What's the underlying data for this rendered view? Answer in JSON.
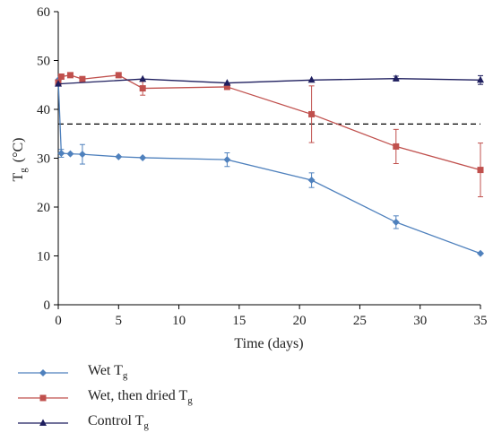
{
  "chart_data": {
    "type": "line",
    "xlabel": "Time (days)",
    "ylabel": {
      "main": "T",
      "sub": "g",
      "unit": "(°C)"
    },
    "xlim": [
      0,
      35
    ],
    "ylim": [
      0,
      60
    ],
    "xticks": [
      0,
      5,
      10,
      15,
      20,
      25,
      30,
      35
    ],
    "yticks": [
      0,
      10,
      20,
      30,
      40,
      50,
      60
    ],
    "grid": false,
    "legend_position": "bottom-left, below plot",
    "reference_line": {
      "y": 37,
      "style": "dashed",
      "color": "#000000"
    },
    "series": [
      {
        "name": "Wet T",
        "name_sub": "g",
        "color": "#4f81bd",
        "marker": "diamond",
        "x": [
          0,
          0.25,
          1,
          2,
          5,
          7,
          14,
          21,
          28,
          35
        ],
        "y": [
          46.0,
          31.0,
          30.9,
          30.8,
          30.3,
          30.1,
          29.7,
          25.5,
          16.9,
          10.5
        ],
        "err": [
          0,
          0.8,
          0,
          2.0,
          0,
          0,
          1.4,
          1.5,
          1.3,
          0
        ]
      },
      {
        "name": "Wet, then dried T",
        "name_sub": "g",
        "color": "#c0504d",
        "marker": "square",
        "x": [
          0,
          0.25,
          1,
          2,
          5,
          7,
          14,
          21,
          28,
          35
        ],
        "y": [
          45.5,
          46.7,
          47.0,
          46.2,
          47.0,
          44.3,
          44.6,
          39.0,
          32.4,
          27.6
        ],
        "err": [
          0,
          0.5,
          0,
          0.5,
          0.5,
          1.4,
          0.5,
          5.8,
          3.5,
          5.5
        ]
      },
      {
        "name": "Control T",
        "name_sub": "g",
        "color": "#1f1f5f",
        "marker": "triangle",
        "x": [
          0,
          7,
          14,
          21,
          28,
          35
        ],
        "y": [
          45.2,
          46.2,
          45.4,
          46.0,
          46.3,
          46.0
        ],
        "err": [
          0,
          0,
          0,
          0,
          0.5,
          0.9
        ]
      }
    ]
  }
}
